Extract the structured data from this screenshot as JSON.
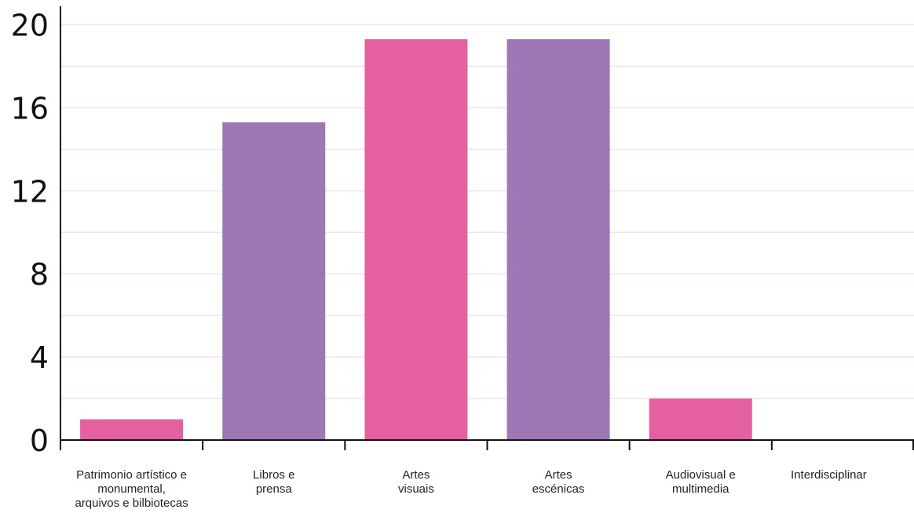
{
  "chart_data": {
    "type": "bar",
    "categories": [
      [
        "Patrimonio artístico e",
        "monumental,",
        "arquivos e bilbiotecas"
      ],
      [
        "Libros e",
        "prensa"
      ],
      [
        "Artes",
        "visuais"
      ],
      [
        "Artes",
        "escénicas"
      ],
      [
        "Audiovisual e",
        "multimedia"
      ],
      [
        "Interdisciplinar"
      ]
    ],
    "values": [
      1,
      15.3,
      19.3,
      19.3,
      2,
      0
    ],
    "bar_colors": [
      "#e5609f",
      "#9e78b4",
      "#e5609f",
      "#9e78b4",
      "#e5609f",
      "#9e78b4"
    ],
    "ylim": [
      0,
      20.5
    ],
    "yticks": [
      0,
      4,
      8,
      12,
      16,
      20
    ],
    "grid_step": 2,
    "grid": true,
    "grid_color": "#f6e2ea",
    "axis_color": "#111111",
    "title": "",
    "xlabel": "",
    "ylabel": ""
  }
}
